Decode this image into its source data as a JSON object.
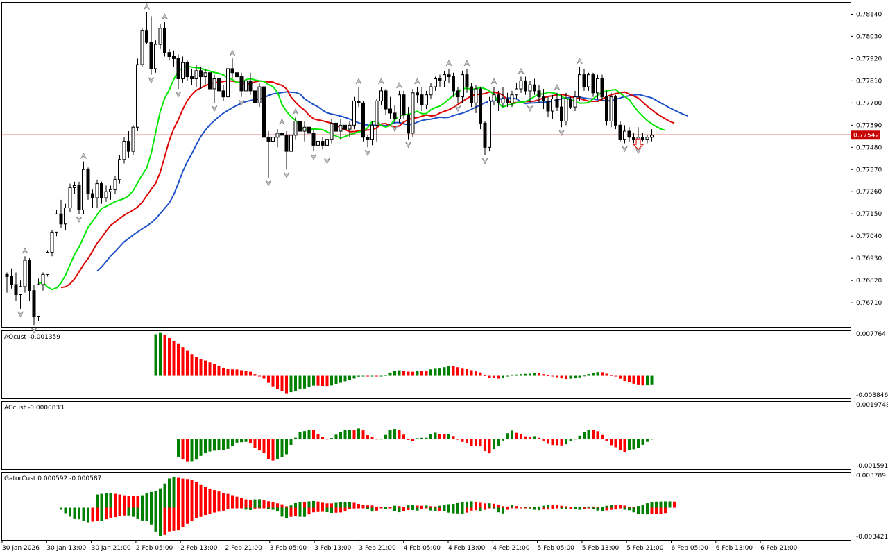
{
  "colors": {
    "bull_bar": "#008000",
    "bear_bar": "#ff0000",
    "alligator_jaw": "#1e50c8",
    "alligator_teeth": "#dc0000",
    "alligator_lips": "#00e600",
    "price_line": "#c80000",
    "price_tag_bg": "#c80000",
    "sell_arrow": "#e03030",
    "grid_border": "#000000",
    "background": "#ffffff"
  },
  "icons": {
    "fractal_up": "fractal-up-arrow-icon",
    "fractal_down": "fractal-down-arrow-icon",
    "sell_signal": "sell-arrow-icon"
  },
  "time_axis": {
    "labels": [
      "30 Jan 2026",
      "30 Jan 13:00",
      "30 Jan 21:00",
      "2 Feb 05:00",
      "2 Feb 13:00",
      "2 Feb 21:00",
      "3 Feb 05:00",
      "3 Feb 13:00",
      "3 Feb 21:00",
      "4 Feb 05:00",
      "4 Feb 13:00",
      "4 Feb 21:00",
      "5 Feb 05:00",
      "5 Feb 13:00",
      "5 Feb 21:00",
      "6 Feb 05:00",
      "6 Feb 13:00",
      "6 Feb 21:00"
    ]
  },
  "chart_data": [
    {
      "type": "candlestick",
      "panel": "price",
      "y_ticks": [
        "0.78140",
        "0.78030",
        "0.77920",
        "0.77810",
        "0.77700",
        "0.77590",
        "0.77480",
        "0.77370",
        "0.77260",
        "0.77150",
        "0.77040",
        "0.76930",
        "0.76820",
        "0.76710"
      ],
      "ylim": [
        0.7659,
        0.782
      ],
      "current_price": 0.77542,
      "current_price_label": "0.77542",
      "candles": [
        [
          0.7685,
          0.7686,
          0.7676,
          0.7684
        ],
        [
          0.7684,
          0.7688,
          0.7678,
          0.768
        ],
        [
          0.768,
          0.7686,
          0.7672,
          0.7675
        ],
        [
          0.7675,
          0.7682,
          0.7668,
          0.7679
        ],
        [
          0.7679,
          0.7694,
          0.7676,
          0.7692
        ],
        [
          0.7692,
          0.7693,
          0.7672,
          0.7677
        ],
        [
          0.7677,
          0.768,
          0.766,
          0.7664
        ],
        [
          0.7664,
          0.7683,
          0.7662,
          0.768
        ],
        [
          0.768,
          0.7686,
          0.7677,
          0.7685
        ],
        [
          0.7685,
          0.7697,
          0.7684,
          0.7696
        ],
        [
          0.7696,
          0.7707,
          0.7694,
          0.7706
        ],
        [
          0.7706,
          0.7717,
          0.7704,
          0.7715
        ],
        [
          0.7715,
          0.7722,
          0.7708,
          0.771
        ],
        [
          0.771,
          0.772,
          0.7707,
          0.7718
        ],
        [
          0.7718,
          0.773,
          0.7716,
          0.7728
        ],
        [
          0.7728,
          0.7731,
          0.7725,
          0.7729
        ],
        [
          0.7729,
          0.7731,
          0.7715,
          0.7717
        ],
        [
          0.7717,
          0.7741,
          0.7715,
          0.7737
        ],
        [
          0.7737,
          0.7738,
          0.7722,
          0.7725
        ],
        [
          0.7725,
          0.7727,
          0.7718,
          0.7723
        ],
        [
          0.7723,
          0.7732,
          0.7718,
          0.773
        ],
        [
          0.773,
          0.7731,
          0.772,
          0.7723
        ],
        [
          0.7723,
          0.7729,
          0.7721,
          0.7726
        ],
        [
          0.7726,
          0.7729,
          0.7722,
          0.7727
        ],
        [
          0.7727,
          0.7734,
          0.7725,
          0.7732
        ],
        [
          0.7732,
          0.7744,
          0.773,
          0.7742
        ],
        [
          0.7742,
          0.7753,
          0.774,
          0.7751
        ],
        [
          0.7751,
          0.7756,
          0.7743,
          0.7746
        ],
        [
          0.7746,
          0.7759,
          0.7744,
          0.7758
        ],
        [
          0.7758,
          0.7792,
          0.7756,
          0.7789
        ],
        [
          0.7789,
          0.7807,
          0.7788,
          0.7806
        ],
        [
          0.7806,
          0.7815,
          0.7799,
          0.78
        ],
        [
          0.78,
          0.7813,
          0.7784,
          0.7787
        ],
        [
          0.7787,
          0.7801,
          0.7785,
          0.7799
        ],
        [
          0.7799,
          0.7809,
          0.7797,
          0.7807
        ],
        [
          0.7807,
          0.781,
          0.7793,
          0.7795
        ],
        [
          0.7795,
          0.7797,
          0.7791,
          0.7793
        ],
        [
          0.7793,
          0.7796,
          0.7788,
          0.7792
        ],
        [
          0.7792,
          0.7794,
          0.7777,
          0.7782
        ],
        [
          0.7782,
          0.7793,
          0.778,
          0.779
        ],
        [
          0.779,
          0.7791,
          0.7781,
          0.7783
        ],
        [
          0.7783,
          0.7787,
          0.7779,
          0.7782
        ],
        [
          0.7782,
          0.7789,
          0.7778,
          0.7786
        ],
        [
          0.7786,
          0.7788,
          0.7777,
          0.7783
        ],
        [
          0.7783,
          0.7787,
          0.7779,
          0.7785
        ],
        [
          0.7785,
          0.7786,
          0.7775,
          0.7777
        ],
        [
          0.7777,
          0.7784,
          0.777,
          0.7782
        ],
        [
          0.7782,
          0.7784,
          0.7772,
          0.7776
        ],
        [
          0.7776,
          0.7779,
          0.7771,
          0.7773
        ],
        [
          0.7773,
          0.7789,
          0.7771,
          0.7787
        ],
        [
          0.7787,
          0.7792,
          0.7782,
          0.7785
        ],
        [
          0.7785,
          0.7788,
          0.778,
          0.7783
        ],
        [
          0.7783,
          0.7785,
          0.7773,
          0.7776
        ],
        [
          0.7776,
          0.7784,
          0.7774,
          0.7781
        ],
        [
          0.7781,
          0.7785,
          0.7774,
          0.7776
        ],
        [
          0.7776,
          0.7778,
          0.7768,
          0.777
        ],
        [
          0.777,
          0.778,
          0.7768,
          0.7778
        ],
        [
          0.7778,
          0.7779,
          0.775,
          0.7753
        ],
        [
          0.7753,
          0.7756,
          0.7733,
          0.7751
        ],
        [
          0.7751,
          0.7756,
          0.7749,
          0.7753
        ],
        [
          0.7753,
          0.7757,
          0.7748,
          0.7755
        ],
        [
          0.7755,
          0.7758,
          0.7751,
          0.7754
        ],
        [
          0.7754,
          0.7756,
          0.7737,
          0.7746
        ],
        [
          0.7746,
          0.7756,
          0.7743,
          0.7754
        ],
        [
          0.7754,
          0.7763,
          0.7752,
          0.7761
        ],
        [
          0.7761,
          0.7763,
          0.7754,
          0.7756
        ],
        [
          0.7756,
          0.7761,
          0.7751,
          0.7758
        ],
        [
          0.7758,
          0.7759,
          0.7753,
          0.7755
        ],
        [
          0.7755,
          0.7757,
          0.7746,
          0.7749
        ],
        [
          0.7749,
          0.7753,
          0.7746,
          0.7751
        ],
        [
          0.7751,
          0.7753,
          0.7747,
          0.7749
        ],
        [
          0.7749,
          0.7754,
          0.7744,
          0.7752
        ],
        [
          0.7752,
          0.7762,
          0.775,
          0.776
        ],
        [
          0.776,
          0.7763,
          0.7754,
          0.7756
        ],
        [
          0.7756,
          0.7762,
          0.7752,
          0.7759
        ],
        [
          0.7759,
          0.7764,
          0.7754,
          0.7757
        ],
        [
          0.7757,
          0.7761,
          0.7753,
          0.7759
        ],
        [
          0.7759,
          0.7773,
          0.7757,
          0.7771
        ],
        [
          0.7771,
          0.7778,
          0.7768,
          0.777
        ],
        [
          0.777,
          0.7771,
          0.7751,
          0.7753
        ],
        [
          0.7753,
          0.7754,
          0.7748,
          0.7752
        ],
        [
          0.7752,
          0.7761,
          0.7749,
          0.7759
        ],
        [
          0.7759,
          0.7772,
          0.7751,
          0.7771
        ],
        [
          0.7771,
          0.7778,
          0.7769,
          0.7776
        ],
        [
          0.7776,
          0.7777,
          0.7764,
          0.7767
        ],
        [
          0.7767,
          0.7773,
          0.7762,
          0.7765
        ],
        [
          0.7765,
          0.7769,
          0.776,
          0.7762
        ],
        [
          0.7762,
          0.7776,
          0.776,
          0.7774
        ],
        [
          0.7774,
          0.7776,
          0.7762,
          0.7764
        ],
        [
          0.7764,
          0.7768,
          0.7752,
          0.7755
        ],
        [
          0.7755,
          0.7777,
          0.7753,
          0.7775
        ],
        [
          0.7775,
          0.7778,
          0.777,
          0.7774
        ],
        [
          0.7774,
          0.7778,
          0.7766,
          0.7769
        ],
        [
          0.7769,
          0.7776,
          0.7767,
          0.7774
        ],
        [
          0.7774,
          0.778,
          0.7772,
          0.7778
        ],
        [
          0.7778,
          0.7783,
          0.7776,
          0.7782
        ],
        [
          0.7782,
          0.7784,
          0.7778,
          0.7781
        ],
        [
          0.7781,
          0.7786,
          0.7778,
          0.7784
        ],
        [
          0.7784,
          0.7787,
          0.778,
          0.7783
        ],
        [
          0.7783,
          0.7785,
          0.7773,
          0.7776
        ],
        [
          0.7776,
          0.7778,
          0.777,
          0.7773
        ],
        [
          0.7773,
          0.7786,
          0.777,
          0.7784
        ],
        [
          0.7784,
          0.7787,
          0.7775,
          0.7778
        ],
        [
          0.7778,
          0.778,
          0.7768,
          0.777
        ],
        [
          0.777,
          0.7779,
          0.7765,
          0.7777
        ],
        [
          0.7777,
          0.7778,
          0.7757,
          0.776
        ],
        [
          0.776,
          0.7761,
          0.7744,
          0.7748
        ],
        [
          0.7748,
          0.7773,
          0.7746,
          0.7771
        ],
        [
          0.7771,
          0.7778,
          0.7769,
          0.7774
        ],
        [
          0.7774,
          0.7776,
          0.7766,
          0.777
        ],
        [
          0.777,
          0.7778,
          0.7768,
          0.7772
        ],
        [
          0.7772,
          0.7775,
          0.7768,
          0.777
        ],
        [
          0.777,
          0.7776,
          0.7768,
          0.7774
        ],
        [
          0.7774,
          0.778,
          0.7772,
          0.7777
        ],
        [
          0.7777,
          0.7783,
          0.7775,
          0.7781
        ],
        [
          0.7781,
          0.7783,
          0.7774,
          0.7776
        ],
        [
          0.7776,
          0.7781,
          0.777,
          0.7779
        ],
        [
          0.7779,
          0.7782,
          0.7774,
          0.7776
        ],
        [
          0.7776,
          0.7779,
          0.777,
          0.7773
        ],
        [
          0.7773,
          0.7777,
          0.7767,
          0.7771
        ],
        [
          0.7771,
          0.7773,
          0.7763,
          0.7766
        ],
        [
          0.7766,
          0.7774,
          0.7762,
          0.7772
        ],
        [
          0.7772,
          0.7775,
          0.7766,
          0.7768
        ],
        [
          0.7768,
          0.7774,
          0.7758,
          0.7761
        ],
        [
          0.7761,
          0.7775,
          0.7759,
          0.7772
        ],
        [
          0.7772,
          0.7773,
          0.7767,
          0.7768
        ],
        [
          0.7768,
          0.7776,
          0.7766,
          0.7773
        ],
        [
          0.7773,
          0.7788,
          0.7771,
          0.7784
        ],
        [
          0.7784,
          0.7787,
          0.7776,
          0.7778
        ],
        [
          0.7778,
          0.7785,
          0.7776,
          0.7784
        ],
        [
          0.7784,
          0.7785,
          0.7773,
          0.7775
        ],
        [
          0.7775,
          0.7784,
          0.7772,
          0.7782
        ],
        [
          0.7782,
          0.7784,
          0.7771,
          0.7773
        ],
        [
          0.7773,
          0.7776,
          0.7759,
          0.7761
        ],
        [
          0.7761,
          0.7775,
          0.7758,
          0.7773
        ],
        [
          0.7773,
          0.7774,
          0.7757,
          0.7759
        ],
        [
          0.7759,
          0.7761,
          0.7751,
          0.7752
        ],
        [
          0.7752,
          0.7759,
          0.775,
          0.7756
        ],
        [
          0.7756,
          0.7758,
          0.7751,
          0.7753
        ],
        [
          0.7753,
          0.7755,
          0.775,
          0.7752
        ],
        [
          0.7752,
          0.7758,
          0.7749,
          0.7753
        ],
        [
          0.7753,
          0.7755,
          0.7751,
          0.7752
        ],
        [
          0.7752,
          0.7754,
          0.775,
          0.7753
        ],
        [
          0.7753,
          0.7757,
          0.7751,
          0.7754
        ]
      ],
      "indicators": [
        {
          "name": "Alligator Jaw",
          "color": "#1e50c8",
          "period": 13,
          "shift": 8
        },
        {
          "name": "Alligator Teeth",
          "color": "#dc0000",
          "period": 8,
          "shift": 5
        },
        {
          "name": "Alligator Lips",
          "color": "#00e600",
          "period": 5,
          "shift": 3
        }
      ],
      "fractals": "Bill Williams fractals (period 5) marked above highs and below lows",
      "signals": [
        {
          "type": "sell",
          "bar": 140
        }
      ]
    },
    {
      "type": "bar",
      "panel": "oscillator",
      "indicator": "AOcust",
      "label": "AOcust -0.001359",
      "y_ticks": [
        "0.007764",
        "-0.003846"
      ],
      "ylim": [
        -0.003846,
        0.007764
      ],
      "source": "derived from candles: SMA5(median) - SMA34(median)"
    },
    {
      "type": "bar",
      "panel": "oscillator",
      "indicator": "ACcust",
      "label": "ACcust -0.0000833",
      "y_ticks": [
        "0.0019748",
        "-0.0015914"
      ],
      "ylim": [
        -0.0015914,
        0.0019748
      ],
      "source": "derived from candles: AO - SMA5(AO)"
    },
    {
      "type": "bar",
      "panel": "oscillator",
      "indicator": "GatorCust",
      "label": "GatorCust 0.000592 -0.000587",
      "y_ticks": [
        "0.003789",
        "-0.003421"
      ],
      "ylim": [
        -0.003421,
        0.003789
      ],
      "source": "derived from Alligator lines: |jaw-teeth| up, -|teeth-lips| down"
    }
  ]
}
